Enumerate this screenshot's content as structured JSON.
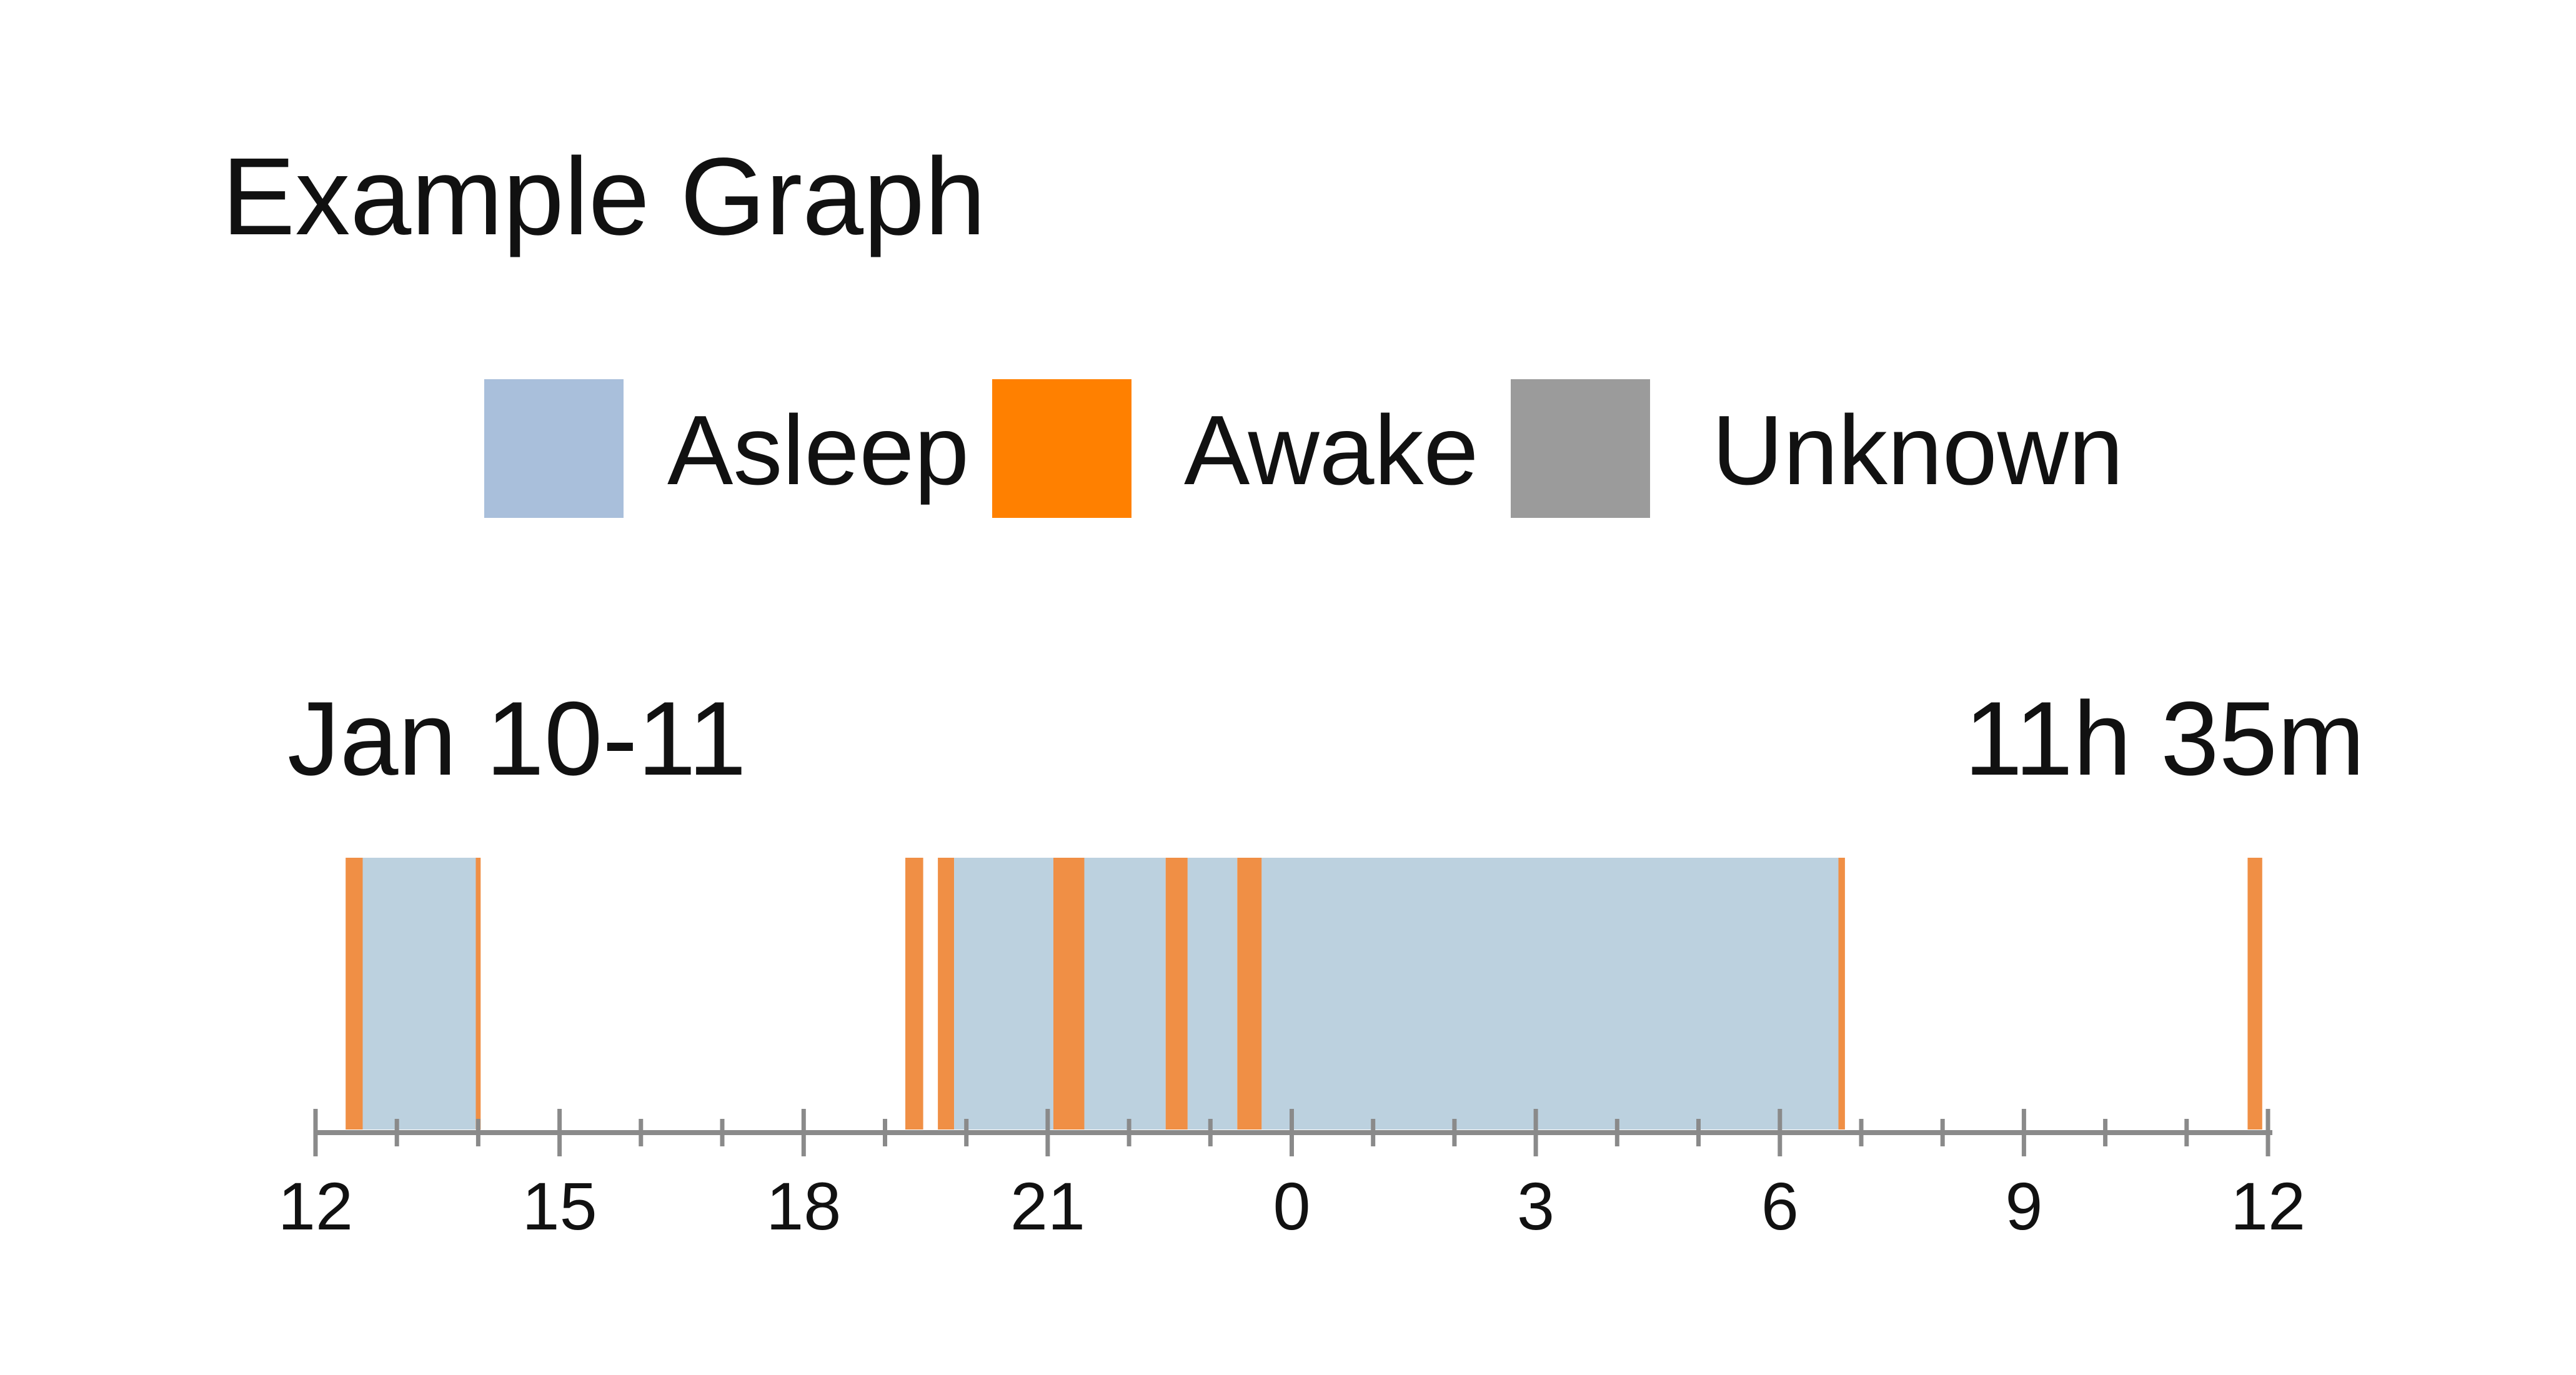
{
  "chart_data": {
    "type": "timeline",
    "title": "Example Graph",
    "legend": [
      {
        "label": "Asleep",
        "color": "#a9bfdb"
      },
      {
        "label": "Awake",
        "color": "#ff8000"
      },
      {
        "label": "Unknown",
        "color": "#9b9b9b"
      }
    ],
    "date_label": "Jan 10-11",
    "total_label": "11h 35m",
    "x_range": [
      12,
      36
    ],
    "x_unit": "hour of day (12 = noon Jan 10, 36 = noon Jan 11)",
    "major_ticks": [
      {
        "value": 12,
        "label": "12"
      },
      {
        "value": 15,
        "label": "15"
      },
      {
        "value": 18,
        "label": "18"
      },
      {
        "value": 21,
        "label": "21"
      },
      {
        "value": 24,
        "label": "0"
      },
      {
        "value": 27,
        "label": "3"
      },
      {
        "value": 30,
        "label": "6"
      },
      {
        "value": 33,
        "label": "9"
      },
      {
        "value": 36,
        "label": "12"
      }
    ],
    "minor_tick_step": 1,
    "segments": [
      {
        "state": "Awake",
        "start": 12.37,
        "end": 12.58
      },
      {
        "state": "Asleep",
        "start": 12.58,
        "end": 13.97
      },
      {
        "state": "Awake",
        "start": 13.97,
        "end": 14.03
      },
      {
        "state": "Awake",
        "start": 19.25,
        "end": 19.47
      },
      {
        "state": "Awake",
        "start": 19.65,
        "end": 19.85
      },
      {
        "state": "Asleep",
        "start": 19.85,
        "end": 21.07
      },
      {
        "state": "Awake",
        "start": 21.07,
        "end": 21.45
      },
      {
        "state": "Asleep",
        "start": 21.45,
        "end": 22.45
      },
      {
        "state": "Awake",
        "start": 22.45,
        "end": 22.72
      },
      {
        "state": "Asleep",
        "start": 22.72,
        "end": 23.33
      },
      {
        "state": "Awake",
        "start": 23.33,
        "end": 23.63
      },
      {
        "state": "Asleep",
        "start": 23.63,
        "end": 30.72
      },
      {
        "state": "Awake",
        "start": 30.72,
        "end": 30.8
      },
      {
        "state": "Awake",
        "start": 35.75,
        "end": 35.93
      }
    ]
  }
}
